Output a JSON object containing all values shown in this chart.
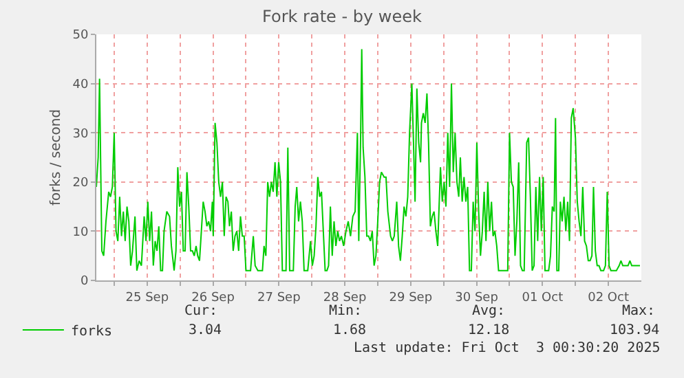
{
  "chart_data": {
    "type": "line",
    "title": "Fork rate - by week",
    "ylabel": "forks / second",
    "x": [
      "2025-09-24T17:30",
      "2025-09-24T18:10",
      "2025-09-24T18:40",
      "2025-09-24T19:10",
      "2025-09-24T19:30",
      "2025-09-24T20:10",
      "2025-09-24T21:00",
      "2025-09-24T22:00",
      "2025-09-24T22:40",
      "2025-09-24T23:20",
      "2025-09-25T00:00",
      "2025-09-25T00:40",
      "2025-09-25T01:20",
      "2025-09-25T02:00",
      "2025-09-25T02:40",
      "2025-09-25T03:20",
      "2025-09-25T04:00",
      "2025-09-25T04:40",
      "2025-09-25T05:20",
      "2025-09-25T06:00",
      "2025-09-25T06:40",
      "2025-09-25T07:35",
      "2025-09-25T08:15",
      "2025-09-25T09:05",
      "2025-09-25T09:55",
      "2025-09-25T10:55",
      "2025-09-25T11:35",
      "2025-09-25T12:15",
      "2025-09-25T12:55",
      "2025-09-25T13:35",
      "2025-09-25T14:15",
      "2025-09-25T14:55",
      "2025-09-25T15:35",
      "2025-09-25T16:15",
      "2025-09-25T16:55",
      "2025-09-25T17:35",
      "2025-09-25T18:10",
      "2025-09-25T19:10",
      "2025-09-25T20:10",
      "2025-09-25T20:50",
      "2025-09-25T21:50",
      "2025-09-25T22:30",
      "2025-09-25T23:10",
      "2025-09-25T23:50",
      "2025-09-26T00:30",
      "2025-09-26T01:10",
      "2025-09-26T01:50",
      "2025-09-26T02:30",
      "2025-09-26T03:10",
      "2025-09-26T03:50",
      "2025-09-26T04:30",
      "2025-09-26T05:10",
      "2025-09-26T05:50",
      "2025-09-26T06:25",
      "2025-09-26T07:05",
      "2025-09-26T07:45",
      "2025-09-26T08:25",
      "2025-09-26T09:05",
      "2025-09-26T09:45",
      "2025-09-26T10:25",
      "2025-09-26T11:05",
      "2025-09-26T11:45",
      "2025-09-26T12:05",
      "2025-09-26T12:45",
      "2025-09-26T13:25",
      "2025-09-26T14:05",
      "2025-09-26T14:45",
      "2025-09-26T15:25",
      "2025-09-26T16:05",
      "2025-09-26T16:45",
      "2025-09-26T17:25",
      "2025-09-26T18:00",
      "2025-09-26T18:40",
      "2025-09-26T19:20",
      "2025-09-26T20:00",
      "2025-09-26T20:40",
      "2025-09-26T21:20",
      "2025-09-26T22:00",
      "2025-09-26T22:40",
      "2025-09-26T23:20",
      "2025-09-27T00:00",
      "2025-09-27T01:00",
      "2025-09-27T01:40",
      "2025-09-27T02:40",
      "2025-09-27T03:20",
      "2025-09-27T04:20",
      "2025-09-27T05:20",
      "2025-09-27T06:00",
      "2025-09-27T06:35",
      "2025-09-27T07:15",
      "2025-09-27T07:55",
      "2025-09-27T08:35",
      "2025-09-27T09:15",
      "2025-09-27T09:55",
      "2025-09-27T10:35",
      "2025-09-27T11:15",
      "2025-09-27T11:55",
      "2025-09-27T12:35",
      "2025-09-27T13:15",
      "2025-09-27T13:55",
      "2025-09-27T14:35",
      "2025-09-27T15:15",
      "2025-09-27T15:55",
      "2025-09-27T16:35",
      "2025-09-27T17:15",
      "2025-09-27T17:55",
      "2025-09-27T18:30",
      "2025-09-27T19:10",
      "2025-09-27T19:50",
      "2025-09-27T20:30",
      "2025-09-27T21:10",
      "2025-09-27T21:50",
      "2025-09-27T22:30",
      "2025-09-27T23:30",
      "2025-09-28T00:10",
      "2025-09-28T00:50",
      "2025-09-28T01:30",
      "2025-09-28T02:10",
      "2025-09-28T02:50",
      "2025-09-28T03:30",
      "2025-09-28T04:10",
      "2025-09-28T04:50",
      "2025-09-28T05:30",
      "2025-09-28T06:05",
      "2025-09-28T06:45",
      "2025-09-28T07:25",
      "2025-09-28T08:05",
      "2025-09-28T08:45",
      "2025-09-28T09:25",
      "2025-09-28T10:05",
      "2025-09-28T10:45",
      "2025-09-28T11:35",
      "2025-09-28T12:25",
      "2025-09-28T13:15",
      "2025-09-28T14:05",
      "2025-09-28T14:55",
      "2025-09-28T15:45",
      "2025-09-28T16:35",
      "2025-09-28T17:05",
      "2025-09-28T17:45",
      "2025-09-28T18:10",
      "2025-09-28T18:40",
      "2025-09-28T19:20",
      "2025-09-28T20:00",
      "2025-09-28T20:40",
      "2025-09-28T21:20",
      "2025-09-28T22:00",
      "2025-09-28T22:40",
      "2025-09-28T23:20",
      "2025-09-29T00:00",
      "2025-09-29T00:40",
      "2025-09-29T01:20",
      "2025-09-29T02:20",
      "2025-09-29T03:00",
      "2025-09-29T03:40",
      "2025-09-29T04:40",
      "2025-09-29T05:20",
      "2025-09-29T06:00",
      "2025-09-29T06:55",
      "2025-09-29T07:35",
      "2025-09-29T08:15",
      "2025-09-29T08:55",
      "2025-09-29T09:35",
      "2025-09-29T10:15",
      "2025-09-29T10:55",
      "2025-09-29T11:35",
      "2025-09-29T12:25",
      "2025-09-29T12:55",
      "2025-09-29T13:35",
      "2025-09-29T14:15",
      "2025-09-29T14:55",
      "2025-09-29T15:35",
      "2025-09-29T15:55",
      "2025-09-29T16:35",
      "2025-09-29T17:15",
      "2025-09-29T17:55",
      "2025-09-29T18:30",
      "2025-09-29T19:10",
      "2025-09-29T19:50",
      "2025-09-29T20:30",
      "2025-09-29T21:10",
      "2025-09-29T21:50",
      "2025-09-29T22:50",
      "2025-09-29T23:30",
      "2025-09-30T00:10",
      "2025-09-30T00:50",
      "2025-09-30T01:30",
      "2025-09-30T02:10",
      "2025-09-30T02:50",
      "2025-09-30T03:30",
      "2025-09-30T04:10",
      "2025-09-30T04:50",
      "2025-09-30T05:30",
      "2025-09-30T06:05",
      "2025-09-30T06:45",
      "2025-09-30T07:25",
      "2025-09-30T08:05",
      "2025-09-30T08:45",
      "2025-09-30T09:25",
      "2025-09-30T10:05",
      "2025-09-30T10:45",
      "2025-09-30T11:25",
      "2025-09-30T12:05",
      "2025-09-30T12:45",
      "2025-09-30T13:25",
      "2025-09-30T14:05",
      "2025-09-30T14:45",
      "2025-09-30T15:25",
      "2025-09-30T16:05",
      "2025-09-30T16:45",
      "2025-09-30T17:25",
      "2025-09-30T18:00",
      "2025-09-30T18:40",
      "2025-09-30T19:20",
      "2025-09-30T20:00",
      "2025-09-30T21:00",
      "2025-09-30T22:20",
      "2025-09-30T23:20",
      "2025-10-01T00:00",
      "2025-10-01T00:40",
      "2025-10-01T01:20",
      "2025-10-01T02:00",
      "2025-10-01T02:40",
      "2025-10-01T03:20",
      "2025-10-01T04:00",
      "2025-10-01T04:40",
      "2025-10-01T05:20",
      "2025-10-01T06:15",
      "2025-10-01T06:55",
      "2025-10-01T07:35",
      "2025-10-01T08:15",
      "2025-10-01T08:55",
      "2025-10-01T09:35",
      "2025-10-01T10:15",
      "2025-10-01T10:55",
      "2025-10-01T11:35",
      "2025-10-01T12:15",
      "2025-10-01T12:55",
      "2025-10-01T13:35",
      "2025-10-01T14:15",
      "2025-10-01T14:55",
      "2025-10-01T15:35",
      "2025-10-01T16:15",
      "2025-10-01T16:45",
      "2025-10-01T17:15",
      "2025-10-01T17:55",
      "2025-10-01T18:30",
      "2025-10-01T19:10",
      "2025-10-01T19:50",
      "2025-10-01T20:30",
      "2025-10-01T21:10",
      "2025-10-01T21:50",
      "2025-10-01T22:30",
      "2025-10-01T23:10",
      "2025-10-02T00:00",
      "2025-10-02T00:40",
      "2025-10-02T01:20",
      "2025-10-02T02:00",
      "2025-10-02T02:40",
      "2025-10-02T03:20",
      "2025-10-02T04:00",
      "2025-10-02T04:40",
      "2025-10-02T05:20",
      "2025-10-02T06:00",
      "2025-10-02T06:35",
      "2025-10-02T07:15",
      "2025-10-02T07:55",
      "2025-10-02T08:35",
      "2025-10-02T09:15",
      "2025-10-02T10:15",
      "2025-10-02T10:55",
      "2025-10-02T11:35",
      "2025-10-02T12:15",
      "2025-10-02T12:55",
      "2025-10-02T13:55",
      "2025-10-02T14:55",
      "2025-10-02T15:55",
      "2025-10-02T16:35",
      "2025-10-02T17:15",
      "2025-10-02T18:10",
      "2025-10-02T19:10",
      "2025-10-02T19:50",
      "2025-10-02T20:30",
      "2025-10-02T21:30",
      "2025-10-02T22:30",
      "2025-10-02T23:30"
    ],
    "series": [
      {
        "name": "forks",
        "color": "#00cc00",
        "values": [
          19,
          25,
          41,
          20,
          6,
          5,
          12,
          18,
          17,
          19,
          30,
          10,
          8,
          17,
          9,
          14,
          8,
          15,
          12,
          3,
          6,
          13,
          2,
          4,
          3,
          13,
          8,
          16,
          8,
          14,
          3,
          8,
          6,
          11,
          2,
          2,
          10,
          14,
          13,
          7,
          2,
          6,
          23,
          15,
          18,
          6,
          6,
          22,
          15,
          6,
          6,
          5,
          7,
          5,
          4,
          10,
          16,
          14,
          11,
          12,
          10,
          16,
          9,
          32,
          28,
          20,
          17,
          20,
          9,
          17,
          16,
          11,
          14,
          6,
          9,
          10,
          6,
          13,
          9,
          9,
          2,
          2,
          2,
          9,
          3,
          2,
          2,
          2,
          7,
          5,
          20,
          17,
          20,
          18,
          24,
          17,
          24,
          20,
          2,
          2,
          2,
          27,
          2,
          2,
          2,
          15,
          19,
          12,
          16,
          12,
          2,
          2,
          2,
          8,
          3,
          5,
          11,
          21,
          17,
          18,
          10,
          2,
          2,
          3,
          15,
          5,
          12,
          7,
          10,
          8,
          9,
          7,
          10,
          12,
          9,
          13,
          14,
          30,
          8,
          29,
          47,
          27,
          21,
          9,
          9,
          8,
          10,
          3,
          5,
          12,
          20,
          22,
          21,
          21,
          14,
          9,
          8,
          9,
          16,
          7,
          4,
          9,
          15,
          13,
          17,
          30,
          40,
          30,
          16,
          39,
          28,
          24,
          32,
          34,
          32,
          38,
          28,
          11,
          13,
          14,
          10,
          7,
          23,
          16,
          20,
          15,
          30,
          19,
          40,
          22,
          30,
          20,
          17,
          25,
          16,
          21,
          16,
          19,
          2,
          2,
          16,
          10,
          28,
          14,
          5,
          10,
          18,
          8,
          20,
          10,
          16,
          9,
          10,
          7,
          2,
          2,
          2,
          2,
          30,
          20,
          19,
          5,
          12,
          24,
          3,
          2,
          2,
          28,
          29,
          17,
          2,
          3,
          19,
          8,
          21,
          10,
          21,
          2,
          2,
          2,
          5,
          15,
          14,
          33,
          2,
          2,
          16,
          12,
          17,
          10,
          16,
          8,
          33,
          35,
          29,
          16,
          12,
          9,
          19,
          8,
          7,
          4,
          4,
          5,
          19,
          6,
          3,
          3,
          2,
          2,
          3,
          18,
          3,
          2,
          2,
          2,
          3,
          4,
          3,
          3,
          3,
          4,
          3,
          3,
          3,
          3
        ]
      }
    ],
    "xlim": [
      "2025-09-24T17:30",
      "2025-10-03T00:00"
    ],
    "xticks": [
      {
        "value": "2025-09-25T00:00",
        "label": null
      },
      {
        "value": "2025-09-25T12:00",
        "label": "25 Sep"
      },
      {
        "value": "2025-09-26T00:00",
        "label": null
      },
      {
        "value": "2025-09-26T12:00",
        "label": "26 Sep"
      },
      {
        "value": "2025-09-27T00:00",
        "label": null
      },
      {
        "value": "2025-09-27T12:00",
        "label": "27 Sep"
      },
      {
        "value": "2025-09-28T00:00",
        "label": null
      },
      {
        "value": "2025-09-28T12:00",
        "label": "28 Sep"
      },
      {
        "value": "2025-09-29T00:00",
        "label": null
      },
      {
        "value": "2025-09-29T12:00",
        "label": "29 Sep"
      },
      {
        "value": "2025-09-30T00:00",
        "label": null
      },
      {
        "value": "2025-09-30T12:00",
        "label": "30 Sep"
      },
      {
        "value": "2025-10-01T00:00",
        "label": null
      },
      {
        "value": "2025-10-01T12:00",
        "label": "01 Oct"
      },
      {
        "value": "2025-10-02T00:00",
        "label": null
      },
      {
        "value": "2025-10-02T12:00",
        "label": "02 Oct"
      }
    ],
    "ylim": [
      0,
      50
    ],
    "yticks": [
      0,
      10,
      20,
      30,
      40,
      50
    ],
    "grid": true,
    "legend": "bottom left",
    "marker": "none",
    "line_style": "solid",
    "annotations": [
      "Cur:",
      "Min:",
      "Avg:",
      "Max:",
      "3.04",
      "1.68",
      "12.18",
      "103.94",
      "Last update: Fri Oct  3 00:30:20 2025"
    ]
  }
}
